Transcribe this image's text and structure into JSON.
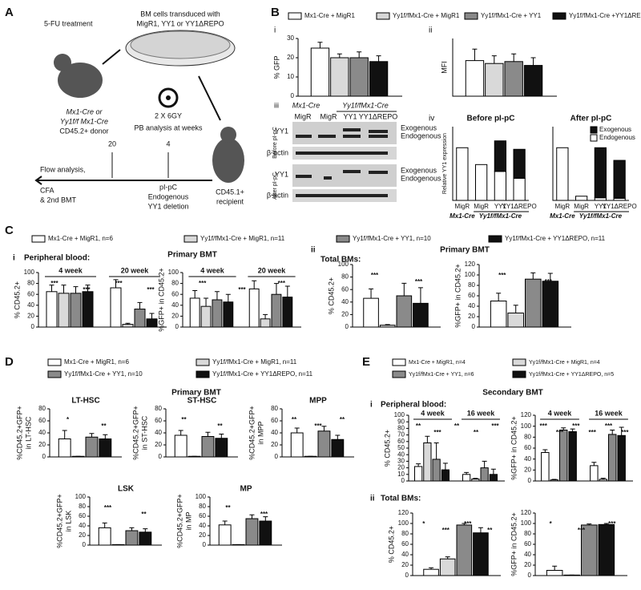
{
  "panel_labels": [
    "A",
    "B",
    "C",
    "D",
    "E"
  ],
  "diagram": {
    "treatment": "5-FU treatment",
    "dish": [
      "BM cells transduced with",
      "MigR1, YY1 or YY1ΔREPO"
    ],
    "donor": [
      "Mx1-Cre or",
      "Yy1f/f Mx1-Cre",
      "CD45.2+ donor"
    ],
    "irradiation": "2 X 6GY",
    "pb": "PB analysis at weeks",
    "week_late": "20",
    "week_early": "4",
    "induction": [
      "pI-pC",
      "Endogenous",
      "YY1 deletion"
    ],
    "recipient": [
      "CD45.1+",
      "recipient"
    ],
    "outcome": [
      "Flow analysis,",
      "CFA",
      "& 2nd BMT"
    ]
  },
  "blot": {
    "sublabel": "iii",
    "genotypes": [
      "Mx1-Cre",
      "Yy1f/fMx1-Cre"
    ],
    "lanes": [
      "MigR",
      "MigR",
      "YY1",
      "YY1ΔREPO"
    ],
    "rows": [
      "YY1",
      "β-actin",
      "YY1",
      "β-actin"
    ],
    "conditions": [
      "Before pI-pC",
      "After pI-pC"
    ],
    "bands": [
      "Exogenous",
      "Endogenous",
      "Exogenous",
      "Endogenous"
    ]
  },
  "headers": {
    "c_i": "i",
    "c_pb": "Peripheral blood:",
    "c_primary1": "Primary BMT",
    "c_ii": "ii",
    "c_total": "Total BMs:",
    "c_primary2": "Primary BMT",
    "d_primary": "Primary BMT",
    "e_secondary": "Secondary BMT",
    "e_i": "i",
    "e_pb": "Peripheral blood:",
    "e_ii": "ii",
    "e_total": "Total BMs:"
  },
  "legends": {
    "B": [
      {
        "name": "Mx1-Cre + MigR1",
        "color": "#ffffff"
      },
      {
        "name": "Yy1f/fMx1-Cre + MigR1",
        "color": "#d9d9d9"
      },
      {
        "name": "Yy1f/fMx1-Cre + YY1",
        "color": "#8a8a8a"
      },
      {
        "name": "Yy1f/fMx1-Cre +YY1ΔREPO",
        "color": "#111111"
      }
    ],
    "C": [
      {
        "name": "Mx1-Cre + MigR1, n=6",
        "color": "#ffffff"
      },
      {
        "name": "Yy1f/fMx1-Cre + MigR1, n=11",
        "color": "#d9d9d9"
      },
      {
        "name": "Yy1f/fMx1-Cre + YY1, n=10",
        "color": "#8a8a8a"
      },
      {
        "name": "Yy1f/fMx1-Cre + YY1ΔREPO, n=11",
        "color": "#111111"
      }
    ],
    "D": [
      {
        "name": "Mx1-Cre + MigR1, n=6",
        "color": "#ffffff"
      },
      {
        "name": "Yy1f/fMx1-Cre + MigR1, n=11",
        "color": "#d9d9d9"
      },
      {
        "name": "Yy1f/fMx1-Cre + YY1, n=10",
        "color": "#8a8a8a"
      },
      {
        "name": "Yy1f/fMx1-Cre + YY1ΔREPO, n=11",
        "color": "#111111"
      }
    ],
    "E": [
      {
        "name": "Mx1-Cre + MigR1, n=4",
        "color": "#ffffff"
      },
      {
        "name": "Yy1f/fMx1-Cre + MigR1, n=4",
        "color": "#d9d9d9"
      },
      {
        "name": "Yy1f/fMx1-Cre + YY1, n=6",
        "color": "#8a8a8a"
      },
      {
        "name": "Yy1f/fMx1-Cre + YY1ΔREPO, n=5",
        "color": "#111111"
      }
    ]
  },
  "chart_data": [
    {
      "type": "bar",
      "sublabel": "i",
      "ylabel": [
        "% GFP"
      ],
      "ylim": [
        0,
        30
      ],
      "yticks": [
        0,
        10,
        20,
        30
      ],
      "series": [
        {
          "color": "#ffffff",
          "values": [
            25
          ],
          "errors": [
            3
          ]
        },
        {
          "color": "#d9d9d9",
          "values": [
            20
          ],
          "errors": [
            2
          ]
        },
        {
          "color": "#8a8a8a",
          "values": [
            20
          ],
          "errors": [
            3
          ]
        },
        {
          "color": "#111111",
          "values": [
            18
          ],
          "errors": [
            3
          ]
        }
      ]
    },
    {
      "type": "bar",
      "sublabel": "ii",
      "ylabel": [
        "MFI"
      ],
      "ylim": [
        0,
        3000
      ],
      "series": [
        {
          "color": "#ffffff",
          "values": [
            1850
          ],
          "errors": [
            600
          ]
        },
        {
          "color": "#d9d9d9",
          "values": [
            1700
          ],
          "errors": [
            400
          ]
        },
        {
          "color": "#8a8a8a",
          "values": [
            1800
          ],
          "errors": [
            400
          ]
        },
        {
          "color": "#111111",
          "values": [
            1600
          ],
          "errors": [
            400
          ]
        }
      ]
    },
    {
      "type": "stacked_bar",
      "sublabel": "iv",
      "title": "Before pI-pC",
      "ylabel": [
        "Relative YY1 expression"
      ],
      "ylim": [
        0,
        1.4
      ],
      "categories": [
        "MigR",
        "MigR",
        "YY1",
        "YY1ΔREPO"
      ],
      "groups": [
        "Mx1-Cre",
        "Yy1f/fMx1-Cre"
      ],
      "series": [
        {
          "color": "#ffffff",
          "values": [
            1,
            0.68,
            0.55,
            0.42
          ]
        },
        {
          "color": "#111111",
          "values": [
            0,
            0,
            0.58,
            0.55
          ]
        }
      ]
    },
    {
      "type": "stacked_bar",
      "title": "After pI-pC",
      "ylim": [
        0,
        1.4
      ],
      "categories": [
        "MigR",
        "MigR",
        "YY1",
        "YY1ΔREPO"
      ],
      "groups": [
        "Mx1-Cre",
        "Yy1f/fMx1-Cre"
      ],
      "series": [
        {
          "name": "Endogenous",
          "color": "#ffffff",
          "values": [
            1,
            0.08,
            0.05,
            0.04
          ]
        },
        {
          "name": "Exogenous",
          "color": "#111111",
          "values": [
            0,
            0,
            0.95,
            0.72
          ]
        }
      ]
    },
    {
      "type": "bar",
      "ylabel": [
        "% CD45.2+"
      ],
      "ylim": [
        0,
        100
      ],
      "yticks": [
        0,
        20,
        40,
        60,
        80,
        100
      ],
      "categories": [
        "4 week",
        "20 week"
      ],
      "series": [
        {
          "color": "#ffffff",
          "values": [
            65,
            72
          ],
          "errors": [
            12,
            15
          ]
        },
        {
          "color": "#d9d9d9",
          "values": [
            62,
            5
          ],
          "errors": [
            15,
            2
          ]
        },
        {
          "color": "#8a8a8a",
          "values": [
            62,
            33
          ],
          "errors": [
            12,
            12
          ]
        },
        {
          "color": "#111111",
          "values": [
            65,
            15
          ],
          "errors": [
            12,
            10
          ]
        }
      ],
      "annotations": [
        "***",
        "***",
        "***",
        "***"
      ]
    },
    {
      "type": "bar",
      "ylabel": [
        "%GFP+ in CD45.2+"
      ],
      "ylim": [
        0,
        100
      ],
      "yticks": [
        0,
        20,
        40,
        60,
        80,
        100
      ],
      "categories": [
        "4 week",
        "20 week"
      ],
      "series": [
        {
          "color": "#ffffff",
          "values": [
            53,
            70
          ],
          "errors": [
            14,
            15
          ]
        },
        {
          "color": "#d9d9d9",
          "values": [
            38,
            15
          ],
          "errors": [
            15,
            8
          ]
        },
        {
          "color": "#8a8a8a",
          "values": [
            50,
            60
          ],
          "errors": [
            15,
            20
          ]
        },
        {
          "color": "#111111",
          "values": [
            46,
            55
          ],
          "errors": [
            14,
            20
          ]
        }
      ],
      "annotations": [
        "***",
        "***",
        "***"
      ]
    },
    {
      "type": "bar",
      "ylabel": [
        "% CD45.2+"
      ],
      "ylim": [
        0,
        100
      ],
      "yticks": [
        0,
        20,
        40,
        60,
        80,
        100
      ],
      "series": [
        {
          "color": "#ffffff",
          "values": [
            46
          ],
          "errors": [
            15
          ]
        },
        {
          "color": "#d9d9d9",
          "values": [
            3
          ],
          "errors": [
            1
          ]
        },
        {
          "color": "#8a8a8a",
          "values": [
            50
          ],
          "errors": [
            20
          ]
        },
        {
          "color": "#111111",
          "values": [
            38
          ],
          "errors": [
            25
          ]
        }
      ],
      "annotations": [
        "***",
        "***"
      ]
    },
    {
      "type": "bar",
      "ylabel": [
        "%GFP+ in CD45.2+"
      ],
      "ylim": [
        0,
        120
      ],
      "yticks": [
        0,
        20,
        40,
        60,
        80,
        100,
        120
      ],
      "series": [
        {
          "color": "#ffffff",
          "values": [
            50
          ],
          "errors": [
            15
          ]
        },
        {
          "color": "#d9d9d9",
          "values": [
            27
          ],
          "errors": [
            15
          ]
        },
        {
          "color": "#8a8a8a",
          "values": [
            92
          ],
          "errors": [
            12
          ]
        },
        {
          "color": "#111111",
          "values": [
            88
          ],
          "errors": [
            15
          ]
        }
      ],
      "annotations": [
        "***",
        "***"
      ]
    },
    {
      "type": "bar",
      "title": "LT-HSC",
      "ylabel": [
        "%CD45.2+GFP+",
        "in LT-HSC"
      ],
      "ylim": [
        0,
        80
      ],
      "yticks": [
        0,
        20,
        40,
        60,
        80
      ],
      "series": [
        {
          "color": "#ffffff",
          "values": [
            30
          ],
          "errors": [
            14
          ]
        },
        {
          "color": "#d9d9d9",
          "values": [
            1
          ],
          "errors": [
            0
          ]
        },
        {
          "color": "#8a8a8a",
          "values": [
            33
          ],
          "errors": [
            6
          ]
        },
        {
          "color": "#111111",
          "values": [
            30
          ],
          "errors": [
            7
          ]
        }
      ],
      "annotations": [
        "*",
        "**"
      ]
    },
    {
      "type": "bar",
      "title": "ST-HSC",
      "ylabel": [
        "%CD45.2+GFP+",
        "in ST-HSC"
      ],
      "ylim": [
        0,
        80
      ],
      "yticks": [
        0,
        20,
        40,
        60,
        80
      ],
      "series": [
        {
          "color": "#ffffff",
          "values": [
            36
          ],
          "errors": [
            8
          ]
        },
        {
          "color": "#d9d9d9",
          "values": [
            1
          ],
          "errors": [
            0
          ]
        },
        {
          "color": "#8a8a8a",
          "values": [
            34
          ],
          "errors": [
            7
          ]
        },
        {
          "color": "#111111",
          "values": [
            31
          ],
          "errors": [
            7
          ]
        }
      ],
      "annotations": [
        "**",
        "**"
      ]
    },
    {
      "type": "bar",
      "title": "MPP",
      "ylabel": [
        "%CD45.2+GFP+",
        "in MPP"
      ],
      "ylim": [
        0,
        80
      ],
      "yticks": [
        0,
        20,
        40,
        60,
        80
      ],
      "series": [
        {
          "color": "#ffffff",
          "values": [
            40
          ],
          "errors": [
            8
          ]
        },
        {
          "color": "#d9d9d9",
          "values": [
            1
          ],
          "errors": [
            0
          ]
        },
        {
          "color": "#8a8a8a",
          "values": [
            43
          ],
          "errors": [
            8
          ]
        },
        {
          "color": "#111111",
          "values": [
            29
          ],
          "errors": [
            7
          ]
        }
      ],
      "annotations": [
        "**",
        "***",
        "**"
      ]
    },
    {
      "type": "bar",
      "title": "LSK",
      "ylabel": [
        "%CD45.2+GFP+",
        "in LSK"
      ],
      "ylim": [
        0,
        100
      ],
      "yticks": [
        0,
        20,
        40,
        60,
        80,
        100
      ],
      "series": [
        {
          "color": "#ffffff",
          "values": [
            36
          ],
          "errors": [
            10
          ]
        },
        {
          "color": "#d9d9d9",
          "values": [
            1
          ],
          "errors": [
            0
          ]
        },
        {
          "color": "#8a8a8a",
          "values": [
            30
          ],
          "errors": [
            6
          ]
        },
        {
          "color": "#111111",
          "values": [
            27
          ],
          "errors": [
            7
          ]
        }
      ],
      "annotations": [
        "***",
        "**"
      ]
    },
    {
      "type": "bar",
      "title": "MP",
      "ylabel": [
        "%CD45.2+GFP+",
        "in MP"
      ],
      "ylim": [
        0,
        100
      ],
      "yticks": [
        0,
        20,
        40,
        60,
        80,
        100
      ],
      "series": [
        {
          "color": "#ffffff",
          "values": [
            42
          ],
          "errors": [
            8
          ]
        },
        {
          "color": "#d9d9d9",
          "values": [
            1
          ],
          "errors": [
            0
          ]
        },
        {
          "color": "#8a8a8a",
          "values": [
            55
          ],
          "errors": [
            8
          ]
        },
        {
          "color": "#111111",
          "values": [
            50
          ],
          "errors": [
            9
          ]
        }
      ],
      "annotations": [
        "**",
        "***"
      ]
    },
    {
      "type": "bar",
      "ylabel": [
        "% CD45.2+"
      ],
      "ylim": [
        0,
        100
      ],
      "yticks": [
        0,
        10,
        20,
        30,
        40,
        50,
        60,
        70,
        80,
        90,
        100
      ],
      "categories": [
        "4 week",
        "16 week"
      ],
      "series": [
        {
          "color": "#ffffff",
          "values": [
            22,
            10
          ],
          "errors": [
            4,
            3
          ]
        },
        {
          "color": "#d9d9d9",
          "values": [
            58,
            3
          ],
          "errors": [
            10,
            1
          ]
        },
        {
          "color": "#8a8a8a",
          "values": [
            33,
            20
          ],
          "errors": [
            25,
            10
          ]
        },
        {
          "color": "#111111",
          "values": [
            17,
            10
          ],
          "errors": [
            10,
            8
          ]
        }
      ],
      "annotations": [
        "**",
        "***",
        "**",
        "**",
        "***"
      ]
    },
    {
      "type": "bar",
      "ylabel": [
        "%GFP+ in CD45.2+"
      ],
      "ylim": [
        0,
        120
      ],
      "yticks": [
        0,
        20,
        40,
        60,
        80,
        100,
        120
      ],
      "categories": [
        "4 week",
        "16 week"
      ],
      "series": [
        {
          "color": "#ffffff",
          "values": [
            52,
            28
          ],
          "errors": [
            5,
            6
          ]
        },
        {
          "color": "#d9d9d9",
          "values": [
            2,
            3
          ],
          "errors": [
            1,
            2
          ]
        },
        {
          "color": "#8a8a8a",
          "values": [
            93,
            85
          ],
          "errors": [
            4,
            8
          ]
        },
        {
          "color": "#111111",
          "values": [
            90,
            83
          ],
          "errors": [
            5,
            15
          ]
        }
      ],
      "annotations": [
        "***",
        "***",
        "***",
        "***",
        "***",
        "***"
      ]
    },
    {
      "type": "bar",
      "ylabel": [
        "% CD45.2+"
      ],
      "ylim": [
        0,
        120
      ],
      "yticks": [
        0,
        20,
        40,
        60,
        80,
        100,
        120
      ],
      "series": [
        {
          "color": "#ffffff",
          "values": [
            12
          ],
          "errors": [
            3
          ]
        },
        {
          "color": "#d9d9d9",
          "values": [
            32
          ],
          "errors": [
            4
          ]
        },
        {
          "color": "#8a8a8a",
          "values": [
            97
          ],
          "errors": [
            3
          ]
        },
        {
          "color": "#111111",
          "values": [
            82
          ],
          "errors": [
            10
          ]
        }
      ],
      "annotations": [
        "*",
        "***",
        "***",
        "**"
      ]
    },
    {
      "type": "bar",
      "ylabel": [
        "%GFP+ in CD45.2+"
      ],
      "ylim": [
        0,
        120
      ],
      "yticks": [
        0,
        20,
        40,
        60,
        80,
        100,
        120
      ],
      "series": [
        {
          "color": "#ffffff",
          "values": [
            10
          ],
          "errors": [
            8
          ]
        },
        {
          "color": "#d9d9d9",
          "values": [
            1
          ],
          "errors": [
            0
          ]
        },
        {
          "color": "#8a8a8a",
          "values": [
            97
          ],
          "errors": [
            2
          ]
        },
        {
          "color": "#111111",
          "values": [
            98
          ],
          "errors": [
            2
          ]
        }
      ],
      "annotations": [
        "*",
        "***",
        "***"
      ]
    }
  ]
}
